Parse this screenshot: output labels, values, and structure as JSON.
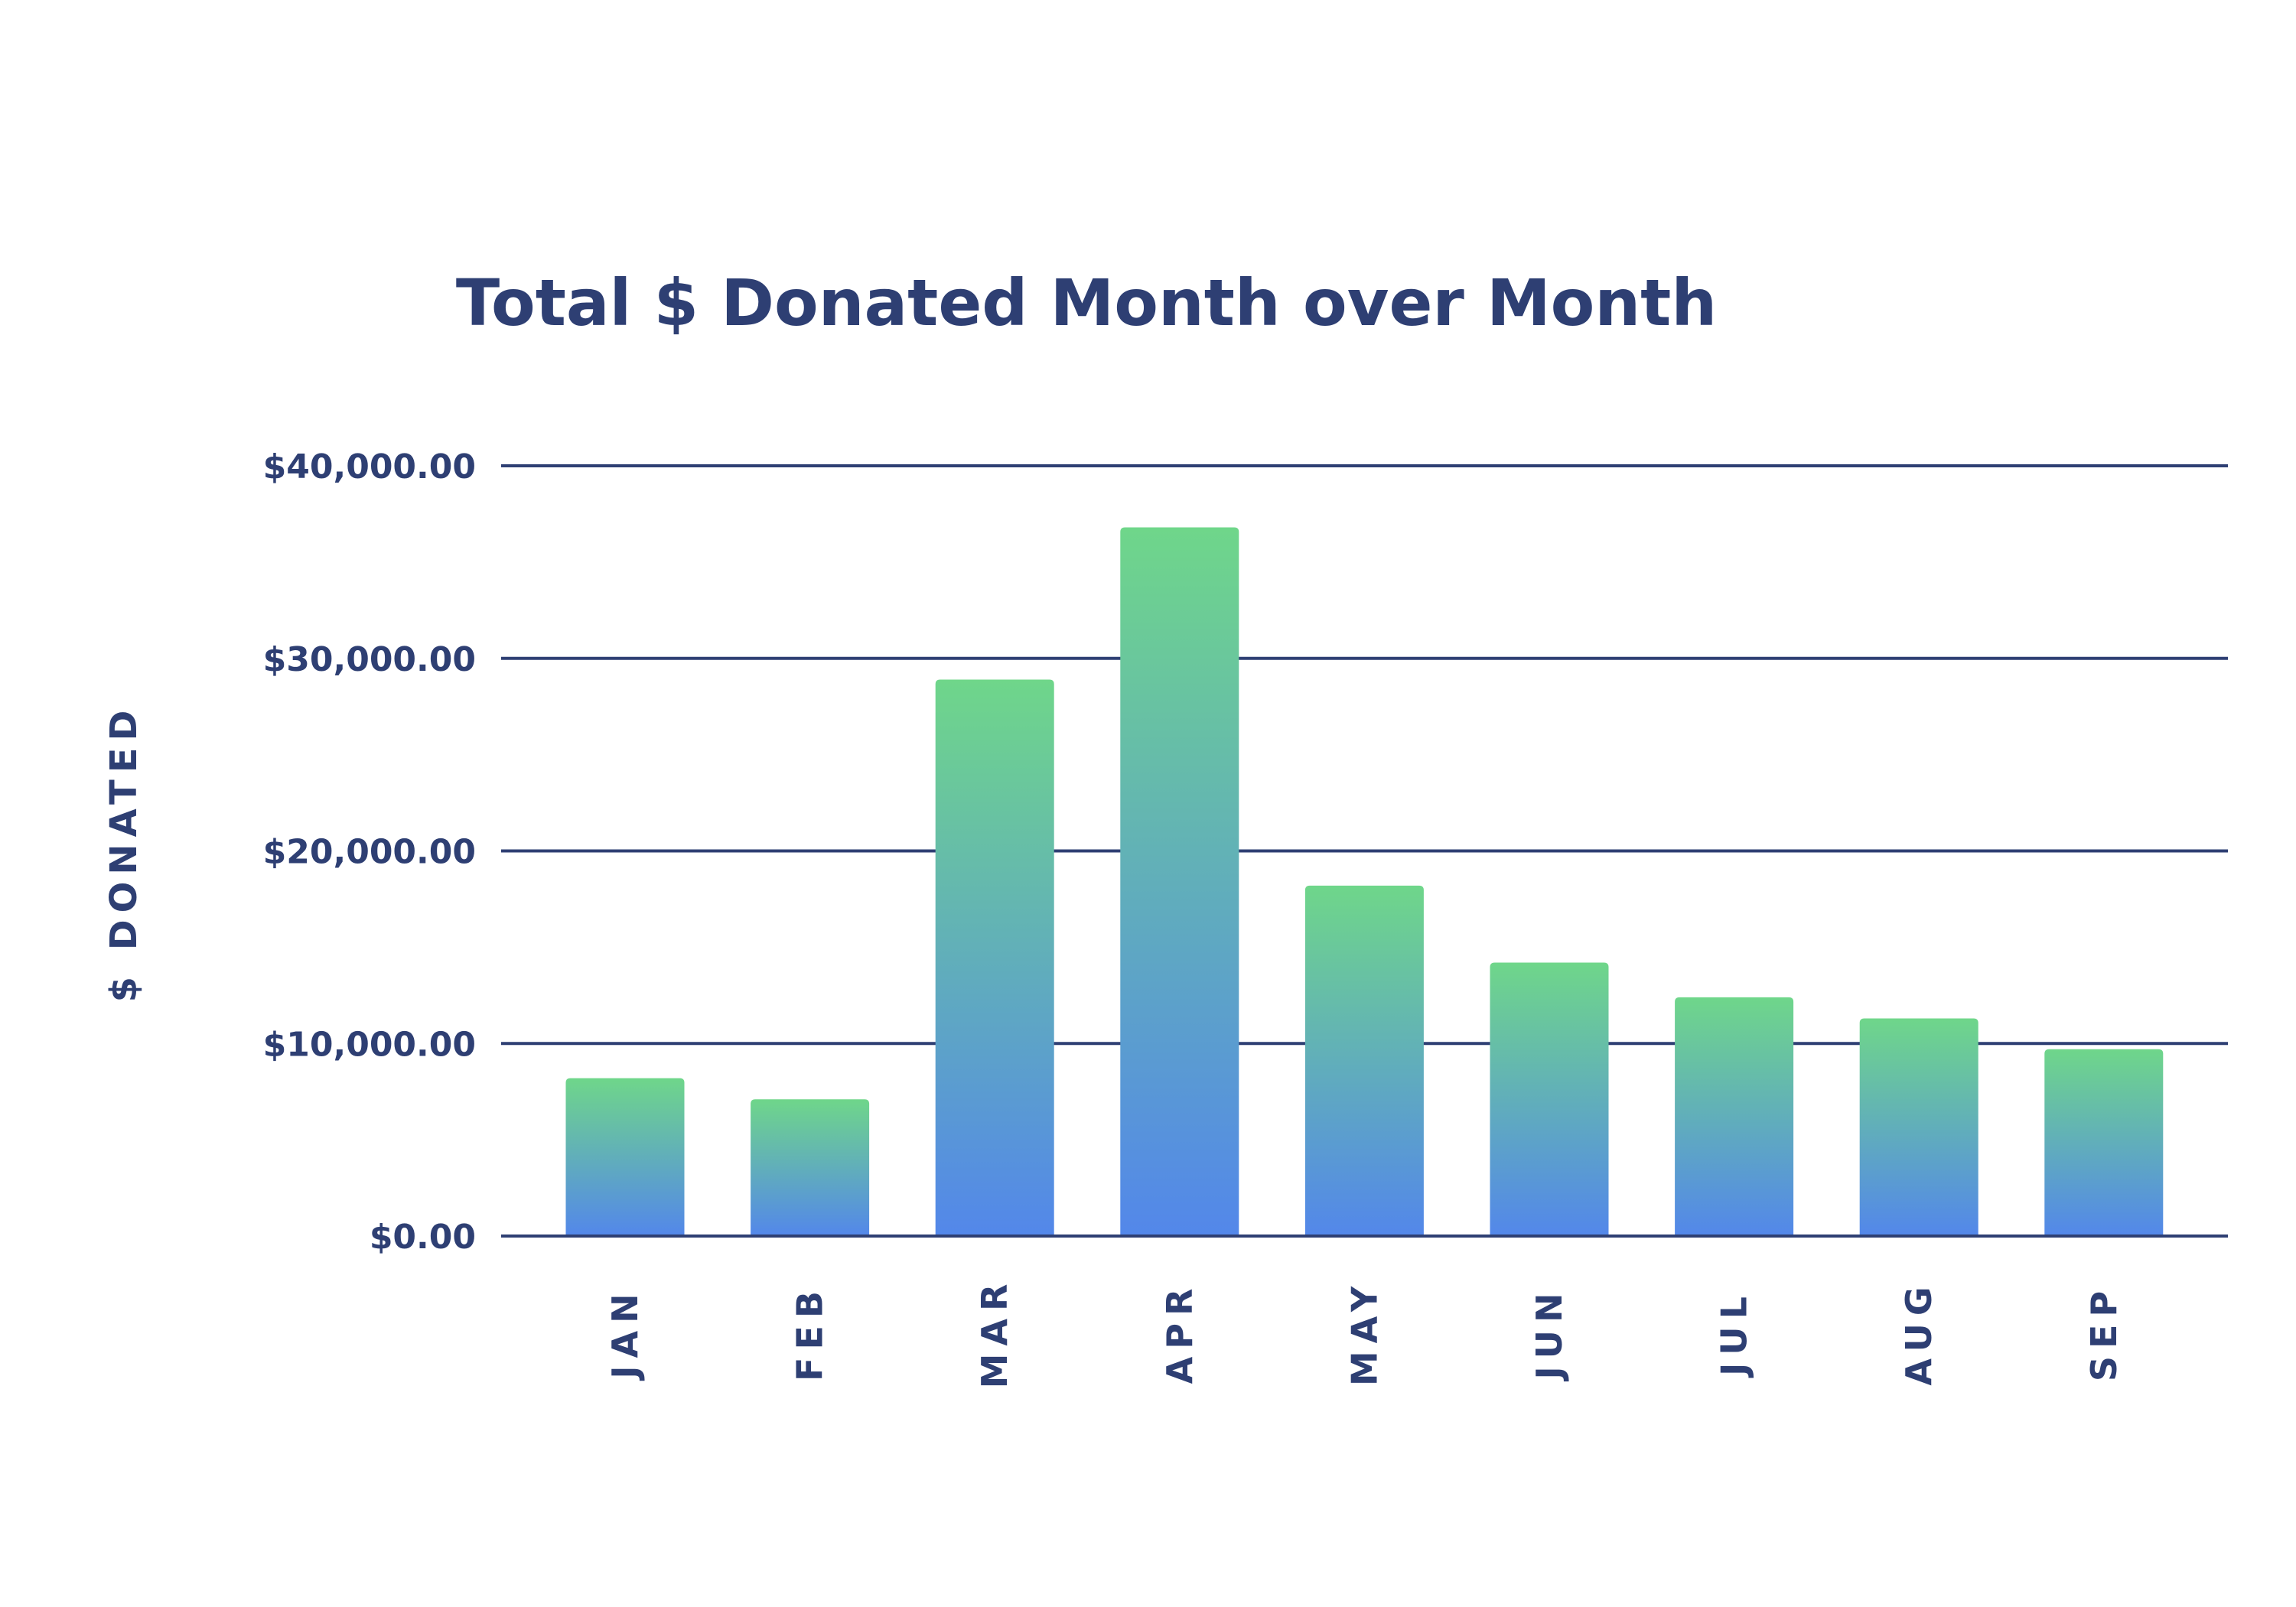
{
  "chart_data": {
    "type": "bar",
    "title": "Total $ Donated Month over Month",
    "xlabel": "",
    "ylabel": "$ DONATED",
    "categories": [
      "JAN",
      "FEB",
      "MAR",
      "APR",
      "MAY",
      "JUN",
      "JUL",
      "AUG",
      "SEP"
    ],
    "values": [
      8200,
      7100,
      28900,
      36800,
      18200,
      14200,
      12400,
      11300,
      9700
    ],
    "ylim": [
      0,
      40000
    ],
    "yticks": [
      0,
      10000,
      20000,
      30000,
      40000
    ],
    "ytick_labels": [
      "$0.00",
      "$10,000.00",
      "$20,000.00",
      "$30,000.00",
      "$40,000.00"
    ],
    "grid": true,
    "legend": "none",
    "colors": {
      "bar_gradient_top": "#6fd68a",
      "bar_gradient_bottom": "#5387ea",
      "text": "#2e3f73",
      "grid": "#2e3f73",
      "background": "#ffffff"
    }
  }
}
